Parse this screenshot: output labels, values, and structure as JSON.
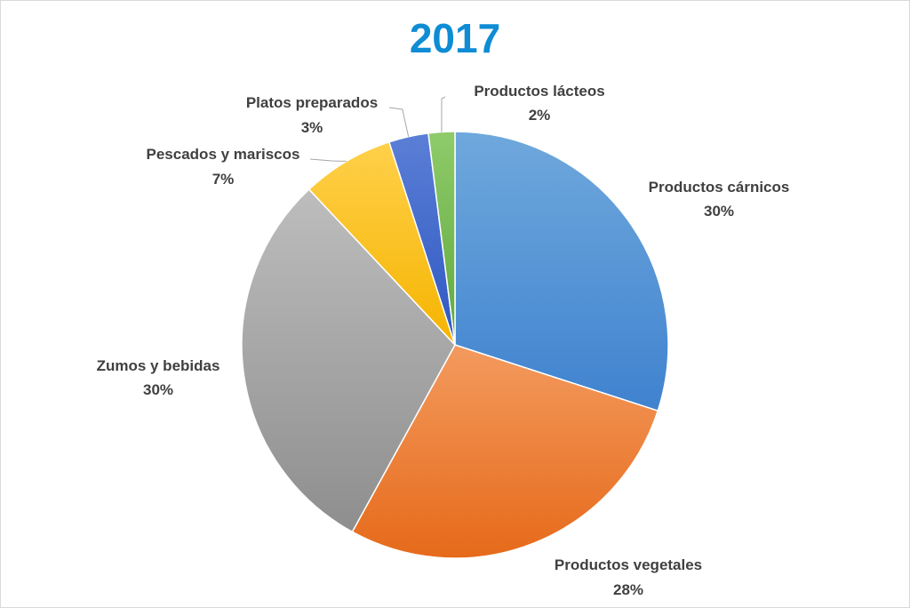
{
  "chart_data": {
    "type": "pie",
    "title": "2017",
    "title_color": "#0E8CD4",
    "slices": [
      {
        "name": "Productos cárnicos",
        "value": 30,
        "label": "30%",
        "color_light": "#6FA8DC",
        "color_dark": "#3F82CF"
      },
      {
        "name": "Productos vegetales",
        "value": 28,
        "label": "28%",
        "color_light": "#F39A5E",
        "color_dark": "#E66A1A"
      },
      {
        "name": "Zumos y bebidas",
        "value": 30,
        "label": "30%",
        "color_light": "#BDBDBD",
        "color_dark": "#8E8E8E"
      },
      {
        "name": "Pescados y mariscos",
        "value": 7,
        "label": "7%",
        "color_light": "#FFD04A",
        "color_dark": "#F5B400"
      },
      {
        "name": "Platos preparados",
        "value": 3,
        "label": "3%",
        "color_light": "#5B7FD6",
        "color_dark": "#2E57C2"
      },
      {
        "name": "Productos lácteos",
        "value": 2,
        "label": "2%",
        "color_light": "#8FCB6A",
        "color_dark": "#5EA83E"
      }
    ]
  }
}
